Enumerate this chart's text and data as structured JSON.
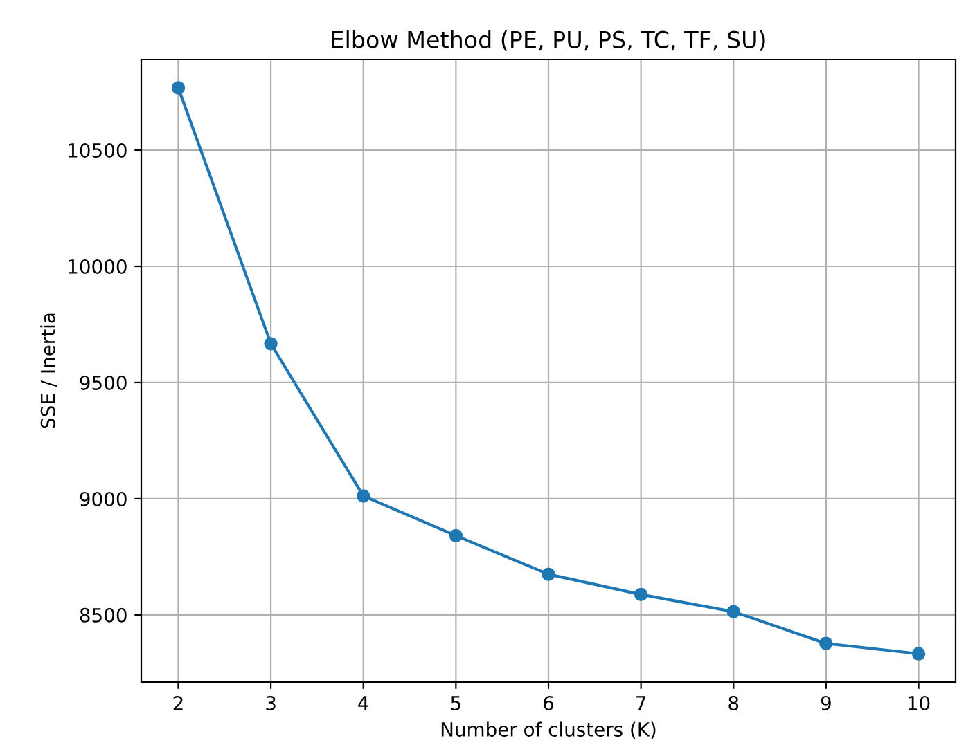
{
  "chart_data": {
    "type": "line",
    "title": "Elbow Method (PE, PU, PS, TC, TF, SU)",
    "xlabel": "Number of clusters (K)",
    "ylabel": "SSE / Inertia",
    "x": [
      2,
      3,
      4,
      5,
      6,
      7,
      8,
      9,
      10
    ],
    "series": [
      {
        "color": "#1f77b4",
        "values": [
          10768,
          9667,
          9012,
          8841,
          8675,
          8588,
          8514,
          8377,
          8333
        ]
      }
    ],
    "xlim": [
      1.6,
      10.4
    ],
    "ylim": [
      8211,
      10890
    ],
    "xticks": [
      2,
      3,
      4,
      5,
      6,
      7,
      8,
      9,
      10
    ],
    "yticks": [
      8500,
      9000,
      9500,
      10000,
      10500
    ],
    "grid": true,
    "marker": "circle",
    "line_style": "solid"
  }
}
